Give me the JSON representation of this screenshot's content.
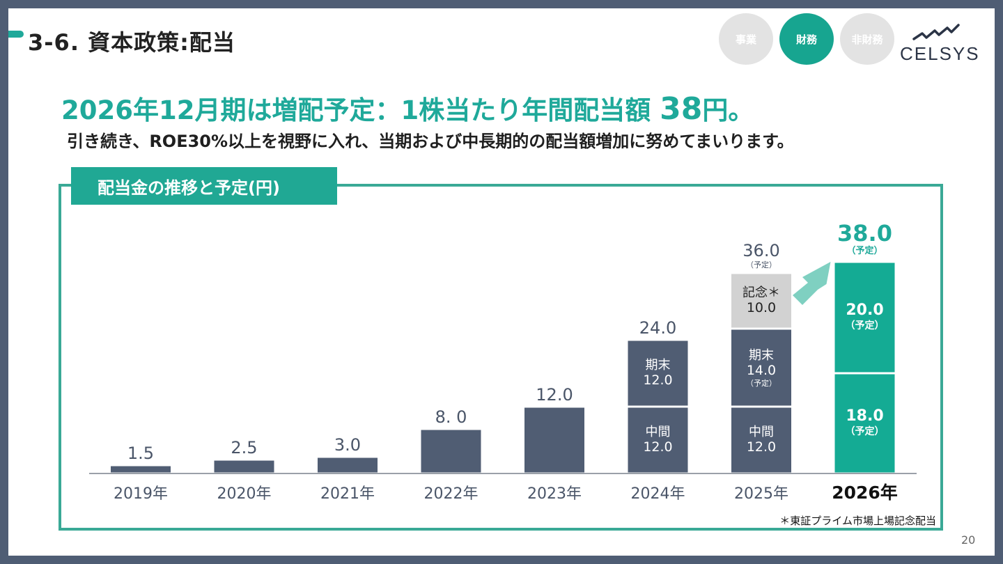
{
  "header": {
    "title": "3-6. 資本政策:配当",
    "nav": [
      "事業",
      "財務",
      "非財務"
    ],
    "active_nav": "財務",
    "logo_text": "CELSYS"
  },
  "headline": {
    "main": "2026年12月期は増配予定：1株当たり年間配当額 ",
    "amount": "38",
    "suffix": "円。",
    "sub": "引き続き、ROE30%以上を視野に入れ、当期および中長期的の配当額増加に努めてまいります。"
  },
  "chart_label": "配当金の推移と予定(円)",
  "footnote": "＊東証プライム市場上場記念配当",
  "page_number": "20",
  "colors": {
    "accent": "#1fa99a",
    "bar": "#505d73",
    "commemorative": "#d2d2d2",
    "forecast": "#14ab94",
    "background": "#4f5d74"
  },
  "chart_data": {
    "type": "bar",
    "stacked": true,
    "categories": [
      "2019年",
      "2020年",
      "2021年",
      "2022年",
      "2023年",
      "2024年",
      "2025年",
      "2026年"
    ],
    "highlight_category": "2026年",
    "totals": [
      "1.5",
      "2.5",
      "3.0",
      "8. 0",
      "12.0",
      "24.0",
      "36.0",
      "38.0"
    ],
    "total_notes": [
      "",
      "",
      "",
      "",
      "",
      "",
      "（予定）",
      "（予定）"
    ],
    "segments": [
      [
        {
          "value": 1.5
        }
      ],
      [
        {
          "value": 2.5
        }
      ],
      [
        {
          "value": 3.0
        }
      ],
      [
        {
          "value": 8.0
        }
      ],
      [
        {
          "value": 12.0
        }
      ],
      [
        {
          "value": 12.0,
          "label": "中間",
          "value_label": "12.0"
        },
        {
          "value": 12.0,
          "label": "期末",
          "value_label": "12.0"
        }
      ],
      [
        {
          "value": 12.0,
          "label": "中間",
          "value_label": "12.0"
        },
        {
          "value": 14.0,
          "label": "期末",
          "value_label": "14.0",
          "note": "（予定）"
        },
        {
          "value": 10.0,
          "label": "記念＊",
          "value_label": "10.0",
          "kind": "commemorative"
        }
      ],
      [
        {
          "value": 18.0,
          "value_label": "18.0",
          "note": "（予定）",
          "kind": "forecast"
        },
        {
          "value": 20.0,
          "value_label": "20.0",
          "note": "（予定）",
          "kind": "forecast"
        }
      ]
    ],
    "ylim": [
      0,
      38
    ],
    "grid": false,
    "legend": "none"
  }
}
